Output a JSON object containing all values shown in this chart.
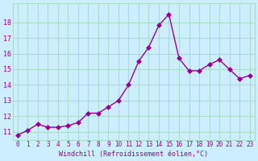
{
  "x": [
    0,
    1,
    2,
    3,
    4,
    5,
    6,
    7,
    8,
    9,
    10,
    11,
    12,
    13,
    14,
    15,
    16,
    17,
    18,
    19,
    20,
    21,
    22,
    23
  ],
  "y": [
    10.8,
    11.1,
    11.5,
    11.3,
    11.3,
    11.4,
    11.6,
    12.2,
    12.2,
    12.6,
    13.0,
    14.0,
    15.5,
    16.4,
    17.8,
    18.5,
    15.7,
    14.9,
    14.9,
    15.3,
    15.6,
    15.0,
    14.4,
    14.6
  ],
  "x_labels": [
    "0",
    "1",
    "2",
    "3",
    "4",
    "5",
    "6",
    "7",
    "8",
    "9",
    "10",
    "11",
    "12",
    "13",
    "14",
    "15",
    "16",
    "17",
    "18",
    "19",
    "20",
    "21",
    "22",
    "23"
  ],
  "y_ticks": [
    11,
    12,
    13,
    14,
    15,
    16,
    17,
    18
  ],
  "ylim": [
    10.5,
    19.2
  ],
  "xlim": [
    -0.5,
    23.5
  ],
  "xlabel": "Windchill (Refroidissement éolien,°C)",
  "line_color": "#990099",
  "marker": "D",
  "marker_size": 3,
  "bg_color": "#cceeff",
  "grid_color": "#aaddcc",
  "xlabel_color": "#990099",
  "tick_color": "#990099",
  "font_family": "monospace"
}
